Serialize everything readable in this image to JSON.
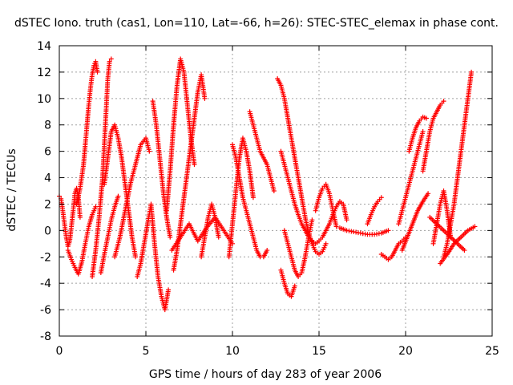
{
  "chart_data": {
    "type": "scatter",
    "title": "dSTEC Iono. truth (cas1, Lon=110, Lat=-66, h=26): STEC-STEC_elemax in phase cont.",
    "xlabel": "GPS time / hours of day 283 of year 2006",
    "ylabel": "dSTEC  / TECUs",
    "xlim": [
      0,
      25
    ],
    "ylim": [
      -8,
      14
    ],
    "xticks": [
      0,
      5,
      10,
      15,
      20,
      25
    ],
    "yticks": [
      -8,
      -6,
      -4,
      -2,
      0,
      2,
      4,
      6,
      8,
      10,
      12,
      14
    ],
    "grid": true,
    "legend": "none",
    "marker": "plus",
    "color": "#ff0000",
    "series": [
      {
        "segments": [
          {
            "x": [
              0.0,
              0.1,
              0.2,
              0.3,
              0.4,
              0.5,
              0.6,
              0.7,
              0.8,
              0.9,
              1.0,
              1.1,
              1.2
            ],
            "y": [
              2.6,
              2.4,
              1.5,
              0.5,
              -0.5,
              -1.2,
              -0.8,
              0.3,
              1.5,
              2.8,
              3.2,
              2.5,
              1.0
            ]
          },
          {
            "x": [
              0.5,
              0.7,
              0.9,
              1.1,
              1.3,
              1.5,
              1.7,
              1.9,
              2.1
            ],
            "y": [
              -1.5,
              -2.2,
              -2.8,
              -3.3,
              -2.4,
              -1.0,
              0.3,
              1.2,
              1.8
            ]
          },
          {
            "x": [
              1.0,
              1.2,
              1.4,
              1.5,
              1.6,
              1.7,
              1.8,
              1.9,
              2.0,
              2.1,
              2.2
            ],
            "y": [
              2.0,
              3.2,
              5.0,
              6.5,
              8.0,
              9.5,
              10.8,
              11.8,
              12.5,
              12.8,
              12.0
            ]
          },
          {
            "x": [
              1.9,
              2.1,
              2.3,
              2.5,
              2.6,
              2.7,
              2.8,
              2.9,
              3.0
            ],
            "y": [
              -3.5,
              -1.5,
              1.0,
              4.0,
              6.5,
              9.0,
              11.5,
              12.8,
              13.0
            ]
          },
          {
            "x": [
              2.6,
              2.8,
              3.0,
              3.2,
              3.4,
              3.6,
              3.8,
              4.0,
              4.2,
              4.4
            ],
            "y": [
              3.5,
              5.5,
              7.5,
              8.0,
              7.0,
              5.5,
              3.5,
              1.5,
              -0.5,
              -2.0
            ]
          },
          {
            "x": [
              2.4,
              2.6,
              2.8,
              3.0,
              3.2,
              3.4
            ],
            "y": [
              -3.2,
              -1.8,
              -0.5,
              0.8,
              1.8,
              2.6
            ]
          },
          {
            "x": [
              3.2,
              3.5,
              3.8,
              4.1,
              4.4,
              4.7,
              5.0,
              5.2
            ],
            "y": [
              -2.0,
              -0.5,
              1.5,
              3.5,
              5.0,
              6.5,
              7.0,
              6.0
            ]
          },
          {
            "x": [
              4.5,
              4.7,
              4.9,
              5.1,
              5.3,
              5.5,
              5.7,
              5.9,
              6.1,
              6.3
            ],
            "y": [
              -3.5,
              -2.5,
              -1.0,
              0.5,
              2.0,
              -1.0,
              -3.5,
              -5.0,
              -6.0,
              -4.5
            ]
          },
          {
            "x": [
              5.4,
              5.6,
              5.8,
              6.0,
              6.2,
              6.4
            ],
            "y": [
              9.8,
              8.0,
              5.5,
              3.0,
              1.0,
              -0.5
            ]
          },
          {
            "x": [
              6.2,
              6.4,
              6.6,
              6.8,
              7.0,
              7.2,
              7.4,
              7.6,
              7.8
            ],
            "y": [
              1.5,
              4.5,
              8.0,
              11.0,
              13.0,
              12.0,
              9.5,
              7.0,
              5.0
            ]
          },
          {
            "x": [
              6.6,
              6.8,
              7.0,
              7.2,
              7.4,
              7.6,
              7.8,
              8.0,
              8.2,
              8.4
            ],
            "y": [
              -3.0,
              -1.5,
              0.5,
              2.5,
              4.5,
              6.5,
              8.5,
              10.5,
              11.8,
              10.0
            ]
          },
          {
            "x": [
              6.5,
              7.0,
              7.5,
              8.0,
              8.5,
              9.0,
              9.5,
              10.0
            ],
            "y": [
              -1.5,
              -0.5,
              0.5,
              -0.8,
              0.2,
              1.0,
              0.0,
              -1.0
            ]
          },
          {
            "x": [
              8.2,
              8.4,
              8.6,
              8.8,
              9.0,
              9.2
            ],
            "y": [
              -2.0,
              -0.5,
              1.0,
              2.0,
              1.0,
              -0.5
            ]
          },
          {
            "x": [
              9.8,
              10.0,
              10.2,
              10.4,
              10.6,
              10.8,
              11.0,
              11.2
            ],
            "y": [
              -2.0,
              0.5,
              3.0,
              5.5,
              7.0,
              6.0,
              4.5,
              2.5
            ]
          },
          {
            "x": [
              10.0,
              10.2,
              10.4,
              10.6,
              10.8,
              11.0,
              11.2,
              11.4,
              11.6,
              11.8,
              12.0
            ],
            "y": [
              6.5,
              5.5,
              4.0,
              2.5,
              1.5,
              0.5,
              -0.5,
              -1.5,
              -2.0,
              -2.0,
              -1.5
            ]
          },
          {
            "x": [
              11.0,
              11.2,
              11.4,
              11.6,
              11.8,
              12.0,
              12.2,
              12.4
            ],
            "y": [
              9.0,
              8.0,
              7.0,
              6.0,
              5.5,
              5.0,
              4.0,
              3.0
            ]
          },
          {
            "x": [
              12.6,
              12.8,
              13.0,
              13.2,
              13.4,
              13.6,
              13.8,
              14.0,
              14.2,
              14.4,
              14.6,
              14.8,
              15.0,
              15.2,
              15.4
            ],
            "y": [
              11.5,
              11.0,
              10.0,
              8.5,
              7.0,
              5.5,
              4.0,
              2.5,
              1.0,
              -0.2,
              -1.0,
              -1.6,
              -1.8,
              -1.6,
              -1.0
            ]
          },
          {
            "x": [
              12.8,
              13.0,
              13.2,
              13.4,
              13.6,
              13.8,
              14.0,
              14.2,
              14.4,
              14.6,
              14.8,
              15.0,
              15.2,
              15.4,
              15.6,
              15.8,
              16.0,
              16.2,
              16.4,
              16.6
            ],
            "y": [
              6.0,
              5.0,
              4.0,
              3.0,
              2.0,
              1.2,
              0.5,
              0.0,
              -0.5,
              -0.8,
              -1.0,
              -0.8,
              -0.5,
              0.0,
              0.5,
              1.2,
              1.8,
              2.2,
              2.0,
              0.8
            ]
          },
          {
            "x": [
              12.8,
              13.0,
              13.2,
              13.4,
              13.6
            ],
            "y": [
              -3.0,
              -4.0,
              -4.8,
              -5.0,
              -4.2
            ]
          },
          {
            "x": [
              13.0,
              13.2,
              13.4,
              13.6,
              13.8,
              14.0,
              14.2,
              14.4,
              14.6
            ],
            "y": [
              0.0,
              -1.0,
              -2.0,
              -3.0,
              -3.5,
              -3.2,
              -2.0,
              -0.5,
              0.8
            ]
          },
          {
            "x": [
              14.8,
              15.0,
              15.2,
              15.4,
              15.6,
              15.8,
              16.0
            ],
            "y": [
              1.5,
              2.5,
              3.2,
              3.5,
              2.8,
              1.5,
              0.3
            ]
          },
          {
            "x": [
              16.2,
              16.6,
              17.0,
              17.4,
              17.8,
              18.2,
              18.6,
              19.0
            ],
            "y": [
              0.2,
              0.0,
              -0.1,
              -0.2,
              -0.3,
              -0.3,
              -0.2,
              0.0
            ]
          },
          {
            "x": [
              17.8,
              18.0,
              18.2,
              18.4,
              18.6
            ],
            "y": [
              0.5,
              1.2,
              1.8,
              2.2,
              2.5
            ]
          },
          {
            "x": [
              18.6,
              18.8,
              19.0,
              19.2,
              19.4,
              19.6,
              19.8,
              20.0
            ],
            "y": [
              -1.8,
              -2.0,
              -2.2,
              -2.0,
              -1.5,
              -1.0,
              -0.8,
              -0.5
            ]
          },
          {
            "x": [
              19.6,
              19.8,
              20.0,
              20.2,
              20.4,
              20.6,
              20.8,
              21.0
            ],
            "y": [
              0.5,
              1.5,
              2.5,
              3.5,
              4.5,
              5.5,
              6.5,
              7.5
            ]
          },
          {
            "x": [
              20.2,
              20.4,
              20.6,
              20.8,
              21.0,
              21.2
            ],
            "y": [
              6.0,
              7.0,
              7.8,
              8.3,
              8.6,
              8.5
            ]
          },
          {
            "x": [
              19.8,
              20.1,
              20.4,
              20.7,
              21.0,
              21.3
            ],
            "y": [
              -1.5,
              -0.5,
              0.5,
              1.5,
              2.2,
              2.8
            ]
          },
          {
            "x": [
              21.0,
              21.2,
              21.4,
              21.6,
              21.8,
              22.0,
              22.2
            ],
            "y": [
              4.5,
              6.0,
              7.5,
              8.5,
              9.0,
              9.5,
              9.8
            ]
          },
          {
            "x": [
              21.6,
              21.8,
              22.0,
              22.2,
              22.4,
              22.6
            ],
            "y": [
              -1.0,
              0.5,
              2.0,
              3.0,
              1.5,
              -0.5
            ]
          },
          {
            "x": [
              22.2,
              22.4,
              22.6,
              22.8,
              23.0,
              23.2,
              23.4,
              23.6,
              23.8
            ],
            "y": [
              -2.0,
              -1.0,
              0.5,
              2.0,
              4.0,
              6.0,
              8.0,
              10.0,
              12.0
            ]
          },
          {
            "x": [
              22.0,
              22.4,
              22.8,
              23.2,
              23.6,
              24.0
            ],
            "y": [
              -2.5,
              -1.8,
              -1.0,
              -0.5,
              0.0,
              0.3
            ]
          },
          {
            "x": [
              21.4,
              21.8,
              22.2,
              22.6,
              23.0,
              23.4
            ],
            "y": [
              1.0,
              0.5,
              0.0,
              -0.5,
              -1.0,
              -1.5
            ]
          }
        ]
      }
    ]
  }
}
